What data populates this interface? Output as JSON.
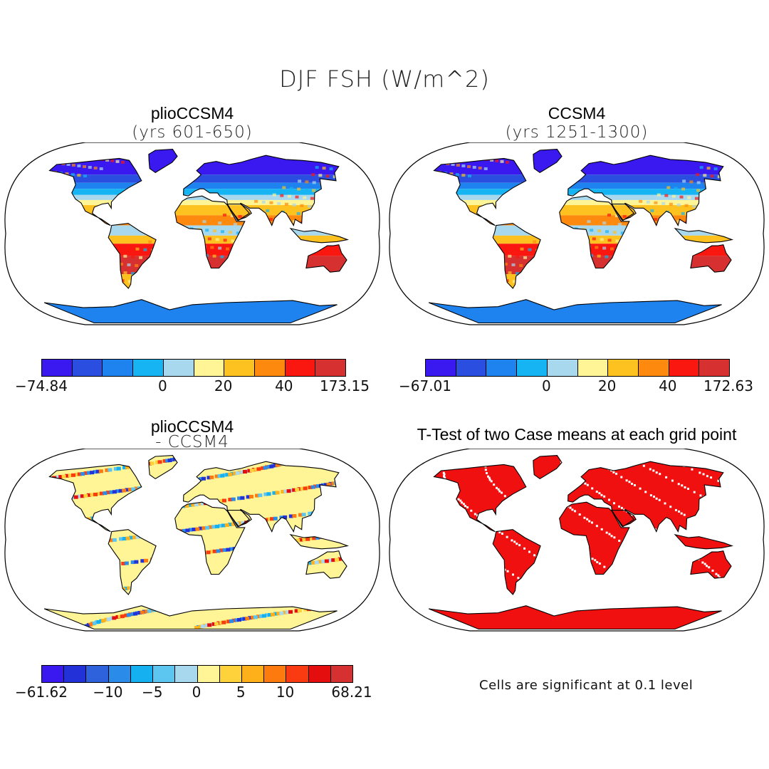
{
  "title": "DJF FSH (W/m^2)",
  "panels": [
    {
      "title": "plioCCSM4",
      "subtitle": "(yrs 601-650)"
    },
    {
      "title": "CCSM4",
      "subtitle": "(yrs 1251-1300)"
    },
    {
      "title": "plioCCSM4",
      "subtitle": "- CCSM4"
    },
    {
      "title": "T-Test of two Case means at each grid point",
      "note": "Cells are significant at 0.1 level"
    }
  ],
  "colorbars": [
    {
      "labels": [
        "-74.84",
        "0",
        "20",
        "40",
        "173.15"
      ],
      "colors": [
        "#3a18f0",
        "#2a4ee0",
        "#1e82ef",
        "#16b4f2",
        "#a8d8ee",
        "#fff496",
        "#fdc21f",
        "#fd8a0e",
        "#fa1710",
        "#d63030"
      ]
    },
    {
      "labels": [
        "-67.01",
        "0",
        "20",
        "40",
        "172.63"
      ],
      "colors": [
        "#3a18f0",
        "#2a4ee0",
        "#1e82ef",
        "#16b4f2",
        "#a8d8ee",
        "#fff496",
        "#fdc21f",
        "#fd8a0e",
        "#fa1710",
        "#d63030"
      ]
    },
    {
      "labels": [
        "-61.62",
        "-10",
        "-5",
        "0",
        "5",
        "10",
        "68.21"
      ],
      "colors": [
        "#3a18f0",
        "#2232d8",
        "#2e62dc",
        "#2a8ce8",
        "#14b0f0",
        "#5cc6f0",
        "#a8d8ee",
        "#fff496",
        "#fdd23a",
        "#fdb01a",
        "#fd7a0e",
        "#fa3a10",
        "#e40e0e",
        "#d63030"
      ]
    }
  ]
}
